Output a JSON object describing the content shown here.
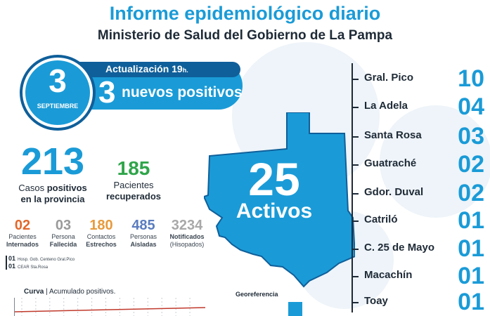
{
  "header": {
    "title": "Informe epidemiológico diario",
    "subtitle": "Ministerio de Salud del Gobierno de La Pampa"
  },
  "date": {
    "day": "3",
    "month": "SEPTIEMBRE"
  },
  "update": {
    "label": "Actualización 19",
    "suffix": "h."
  },
  "new_cases": {
    "value": "3",
    "label": "nuevos positivos"
  },
  "totals": {
    "positive": {
      "value": "213",
      "label_a": "Casos ",
      "label_b": "positivos",
      "label_c": "en la provincia"
    },
    "recovered": {
      "value": "185",
      "label_a": "Pacientes",
      "label_b": "recuperados"
    }
  },
  "stats": [
    {
      "value": "02",
      "line1": "Pacientes",
      "line2": "Internados",
      "color": "#e2672a"
    },
    {
      "value": "03",
      "line1": "Persona",
      "line2": "Fallecida",
      "color": "#9a9a9a"
    },
    {
      "value": "180",
      "line1": "Contactos",
      "line2": "Estrechos",
      "color": "#e79a3c"
    },
    {
      "value": "485",
      "line1": "Personas",
      "line2": "Aisladas",
      "color": "#5a7cbf"
    },
    {
      "value": "3234",
      "line1": "Notificados",
      "line2": "(Hisopados)",
      "color": "#a8a8a8"
    }
  ],
  "hospitals": [
    {
      "count": "01",
      "name": "Hosp. Gob. Centeno Gral.Pico"
    },
    {
      "count": "01",
      "name": "CEAR Sta.Rosa"
    }
  ],
  "active": {
    "value": "25",
    "label": "Activos"
  },
  "locations": [
    {
      "name": "Gral. Pico",
      "value": "10"
    },
    {
      "name": "La Adela",
      "value": "04"
    },
    {
      "name": "Santa Rosa",
      "value": "03"
    },
    {
      "name": "Guatraché",
      "value": "02"
    },
    {
      "name": "Gdor. Duval",
      "value": "02"
    },
    {
      "name": "Catriló",
      "value": "01"
    },
    {
      "name": "C. 25 de Mayo",
      "value": "01"
    },
    {
      "name": "Macachín",
      "value": "01"
    },
    {
      "name": "Toay",
      "value": "01"
    }
  ],
  "curve": {
    "title_a": "Curva",
    "title_b": " | Acumulado positivos."
  },
  "georef": {
    "title": "Georeferencia"
  },
  "colors": {
    "primary": "#1a9bd7",
    "dark": "#0f5f9a",
    "green": "#2fa54a",
    "text": "#1e2a36"
  }
}
